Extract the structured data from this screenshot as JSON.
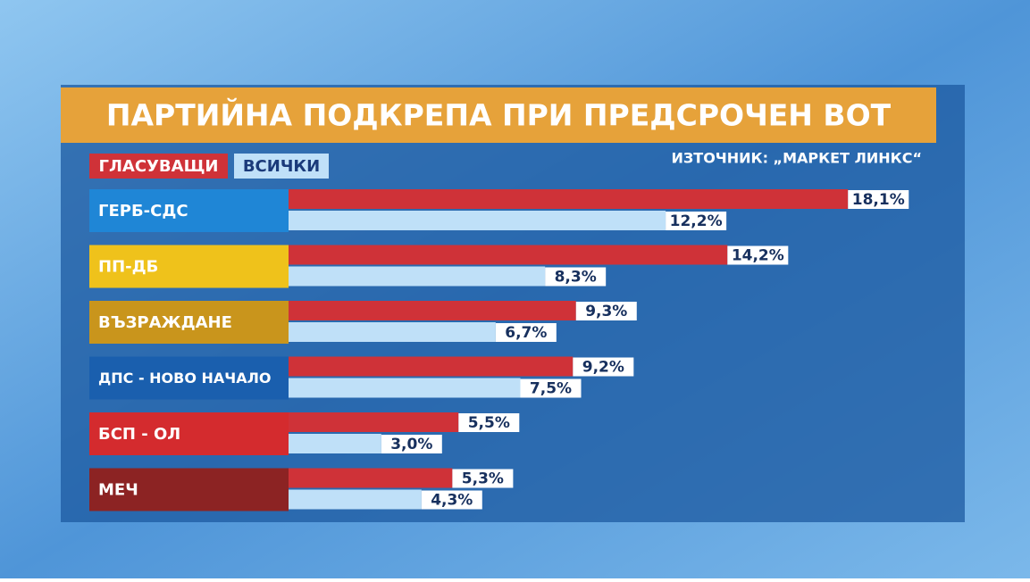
{
  "chart_data": {
    "type": "bar",
    "orientation": "horizontal",
    "title": "ПАРТИЙНА ПОДКРЕПА ПРИ ПРЕДСРОЧЕН ВОТ",
    "source": "ИЗТОЧНИК: „МАРКЕТ ЛИНКС“",
    "categories": [
      "ГЕРБ-СДС",
      "ПП-ДБ",
      "ВЪЗРАЖДАНЕ",
      "ДПС - НОВО НАЧАЛО",
      "БСП - ОЛ",
      "МЕЧ"
    ],
    "category_colors": [
      "#1f86d6",
      "#efc21b",
      "#c9951c",
      "#1a5fae",
      "#d42b2e",
      "#8c2323"
    ],
    "series": [
      {
        "name": "ГЛАСУВАЩИ",
        "color": "#cf3238",
        "values": [
          18.1,
          14.2,
          9.3,
          9.2,
          5.5,
          5.3
        ],
        "value_labels": [
          "18,1%",
          "14,2%",
          "9,3%",
          "9,2%",
          "5,5%",
          "5,3%"
        ]
      },
      {
        "name": "ВСИЧКИ",
        "color": "#bfe0f8",
        "values": [
          12.2,
          8.3,
          6.7,
          7.5,
          3.0,
          4.3
        ],
        "value_labels": [
          "12,2%",
          "8,3%",
          "6,7%",
          "7,5%",
          "3,0%",
          "4,3%"
        ]
      }
    ]
  }
}
